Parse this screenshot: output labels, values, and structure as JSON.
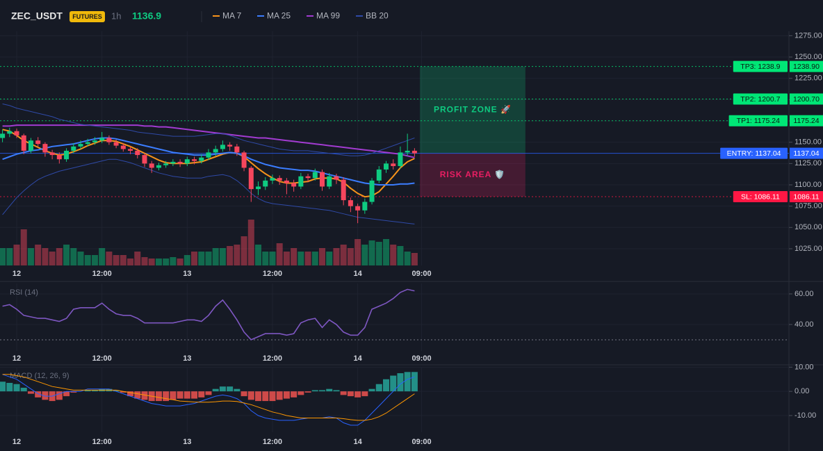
{
  "header": {
    "symbol": "ZEC_USDT",
    "badge": "FUTURES",
    "interval": "1h",
    "price": 1136.9
  },
  "chart_data": [
    {
      "type": "candlestick",
      "xlim": [
        -2.35,
        108.7
      ],
      "ylim": [
        1005.4,
        1280.2
      ],
      "xticks": [
        {
          "value": 0,
          "label": "12"
        },
        {
          "value": 12,
          "label": "12:00"
        },
        {
          "value": 24,
          "label": "13"
        },
        {
          "value": 36,
          "label": "12:00"
        },
        {
          "value": 48,
          "label": "14"
        },
        {
          "value": 57,
          "label": "09:00"
        }
      ],
      "yticks": [
        {
          "value": 1275,
          "label": "1275.00"
        },
        {
          "value": 1250,
          "label": "1250.00"
        },
        {
          "value": 1225,
          "label": "1225.00"
        },
        {
          "value": 1200,
          "label": "1200.00"
        },
        {
          "value": 1175,
          "label": "1175.00"
        },
        {
          "value": 1150,
          "label": "1150.00"
        },
        {
          "value": 1125,
          "label": "1125.00"
        },
        {
          "value": 1100,
          "label": "1100.00"
        },
        {
          "value": 1075,
          "label": "1075.00"
        },
        {
          "value": 1050,
          "label": "1050.00"
        },
        {
          "value": 1025,
          "label": "1025.00"
        }
      ],
      "grid": true,
      "up_color": "#0ecb81",
      "down_color": "#f6465d",
      "x": [
        -2,
        -1,
        0,
        1,
        2,
        3,
        4,
        5,
        6,
        7,
        8,
        9,
        10,
        11,
        12,
        13,
        14,
        15,
        16,
        17,
        18,
        19,
        20,
        21,
        22,
        23,
        24,
        25,
        26,
        27,
        28,
        29,
        30,
        31,
        32,
        33,
        34,
        35,
        36,
        37,
        38,
        39,
        40,
        41,
        42,
        43,
        44,
        45,
        46,
        47,
        48,
        49,
        50,
        51,
        52,
        53,
        54,
        55,
        56
      ],
      "candles": {
        "open": [
          1155,
          1160,
          1163,
          1158,
          1140,
          1152,
          1148,
          1138,
          1135,
          1130,
          1140,
          1145,
          1148,
          1150,
          1152,
          1155,
          1150,
          1146,
          1142,
          1140,
          1135,
          1125,
          1120,
          1123,
          1125,
          1127,
          1125,
          1130,
          1128,
          1132,
          1138,
          1142,
          1147,
          1145,
          1138,
          1120,
          1095,
          1098,
          1105,
          1108,
          1105,
          1102,
          1098,
          1110,
          1108,
          1115,
          1098,
          1110,
          1106,
          1082,
          1075,
          1070,
          1080,
          1105,
          1118,
          1125,
          1122,
          1138,
          1140
        ],
        "high": [
          1165,
          1167,
          1166,
          1160,
          1155,
          1156,
          1150,
          1141,
          1138,
          1143,
          1149,
          1152,
          1154,
          1156,
          1162,
          1158,
          1153,
          1149,
          1145,
          1143,
          1137,
          1128,
          1126,
          1128,
          1130,
          1130,
          1133,
          1133,
          1136,
          1142,
          1146,
          1152,
          1150,
          1148,
          1140,
          1122,
          1104,
          1109,
          1112,
          1111,
          1108,
          1106,
          1114,
          1113,
          1119,
          1118,
          1114,
          1113,
          1109,
          1085,
          1078,
          1084,
          1108,
          1122,
          1128,
          1130,
          1145,
          1160,
          1143
        ],
        "low": [
          1150,
          1156,
          1155,
          1136,
          1137,
          1145,
          1133,
          1130,
          1125,
          1127,
          1137,
          1142,
          1145,
          1147,
          1149,
          1147,
          1143,
          1139,
          1136,
          1131,
          1121,
          1114,
          1117,
          1120,
          1122,
          1121,
          1122,
          1124,
          1125,
          1129,
          1134,
          1139,
          1140,
          1134,
          1116,
          1080,
          1088,
          1094,
          1101,
          1100,
          1089,
          1092,
          1095,
          1103,
          1105,
          1093,
          1095,
          1101,
          1076,
          1068,
          1055,
          1066,
          1077,
          1102,
          1114,
          1118,
          1119,
          1134,
          1133
        ],
        "close": [
          1160,
          1163,
          1158,
          1140,
          1152,
          1148,
          1138,
          1135,
          1130,
          1140,
          1145,
          1148,
          1150,
          1152,
          1155,
          1150,
          1146,
          1142,
          1140,
          1135,
          1125,
          1120,
          1123,
          1125,
          1127,
          1125,
          1130,
          1128,
          1132,
          1138,
          1142,
          1147,
          1145,
          1138,
          1120,
          1095,
          1098,
          1105,
          1108,
          1105,
          1102,
          1098,
          1110,
          1108,
          1115,
          1098,
          1110,
          1106,
          1082,
          1075,
          1070,
          1080,
          1105,
          1118,
          1125,
          1122,
          1138,
          1140,
          1137
        ]
      },
      "volume": [
        25,
        25,
        30,
        52,
        25,
        30,
        25,
        20,
        25,
        30,
        25,
        20,
        15,
        15,
        25,
        20,
        15,
        15,
        10,
        20,
        12,
        10,
        10,
        10,
        12,
        10,
        15,
        20,
        20,
        20,
        25,
        25,
        28,
        30,
        42,
        66,
        30,
        20,
        20,
        32,
        20,
        25,
        20,
        20,
        20,
        25,
        20,
        25,
        30,
        25,
        38,
        30,
        36,
        34,
        38,
        30,
        28,
        20,
        18
      ],
      "series": [
        {
          "name": "MA 7",
          "color": "#f7931a",
          "values": [
            1165,
            1163,
            1158,
            1152,
            1148,
            1144,
            1140,
            1137,
            1135,
            1136,
            1139,
            1142,
            1146,
            1149,
            1152,
            1152,
            1151,
            1148,
            1145,
            1141,
            1137,
            1133,
            1129,
            1126,
            1125,
            1125,
            1125,
            1126,
            1127,
            1130,
            1133,
            1136,
            1138,
            1137,
            1133,
            1126,
            1119,
            1113,
            1108,
            1104,
            1102,
            1102,
            1103,
            1104,
            1107,
            1108,
            1108,
            1107,
            1103,
            1096,
            1090,
            1086,
            1087,
            1092,
            1101,
            1110,
            1120,
            1127,
            1131
          ]
        },
        {
          "name": "MA 25",
          "color": "#3b7dff",
          "values": [
            1130,
            1133,
            1136,
            1138,
            1140,
            1141,
            1143,
            1145,
            1146,
            1147,
            1148,
            1150,
            1152,
            1154,
            1155,
            1155,
            1154,
            1152,
            1150,
            1148,
            1146,
            1144,
            1142,
            1140,
            1138,
            1137,
            1136,
            1135,
            1135,
            1135,
            1136,
            1137,
            1138,
            1137,
            1134,
            1130,
            1127,
            1124,
            1122,
            1120,
            1119,
            1118,
            1117,
            1117,
            1116,
            1114,
            1112,
            1110,
            1108,
            1106,
            1104,
            1102,
            1101,
            1100,
            1100,
            1100,
            1101,
            1101,
            1102
          ]
        },
        {
          "name": "MA 99",
          "color": "#a23bd1",
          "values": [
            1169,
            1169,
            1170,
            1170,
            1170,
            1170,
            1170,
            1170,
            1170,
            1170,
            1170,
            1170,
            1170,
            1170,
            1170,
            1170,
            1170,
            1170,
            1170,
            1170,
            1169,
            1169,
            1168,
            1168,
            1167,
            1166,
            1165,
            1164,
            1163,
            1162,
            1161,
            1160,
            1159,
            1158,
            1157,
            1156,
            1155,
            1155,
            1154,
            1153,
            1152,
            1151,
            1150,
            1149,
            1148,
            1147,
            1146,
            1145,
            1144,
            1143,
            1142,
            1141,
            1140,
            1139,
            1138,
            1137,
            1136,
            1134,
            1132
          ]
        },
        {
          "name": "BB 20",
          "color": "#2f4aa8",
          "upper": [
            1195,
            1193,
            1190,
            1188,
            1186,
            1184,
            1182,
            1180,
            1177,
            1175,
            1173,
            1171,
            1170,
            1169,
            1168,
            1167,
            1166,
            1165,
            1164,
            1162,
            1161,
            1160,
            1159,
            1158,
            1157,
            1157,
            1157,
            1157,
            1158,
            1159,
            1160,
            1160,
            1158,
            1155,
            1152,
            1150,
            1148,
            1146,
            1144,
            1142,
            1141,
            1140,
            1140,
            1140,
            1139,
            1138,
            1137,
            1136,
            1135,
            1134,
            1134,
            1135,
            1137,
            1140,
            1143,
            1146,
            1149,
            1152,
            1155
          ],
          "lower": [
            1065,
            1075,
            1085,
            1093,
            1100,
            1106,
            1110,
            1113,
            1116,
            1118,
            1120,
            1122,
            1124,
            1126,
            1128,
            1130,
            1130,
            1128,
            1126,
            1123,
            1120,
            1117,
            1114,
            1112,
            1110,
            1109,
            1108,
            1108,
            1108,
            1110,
            1111,
            1112,
            1110,
            1105,
            1098,
            1090,
            1084,
            1080,
            1078,
            1077,
            1076,
            1075,
            1074,
            1073,
            1072,
            1071,
            1070,
            1068,
            1066,
            1064,
            1062,
            1061,
            1060,
            1059,
            1058,
            1057,
            1056,
            1055,
            1054
          ]
        }
      ],
      "levels": [
        {
          "label": "TP3: 1238.9",
          "value": 1238.9,
          "axis_label": "1238.90",
          "color": "#00e676",
          "style": "dotted"
        },
        {
          "label": "TP2: 1200.7",
          "value": 1200.7,
          "axis_label": "1200.70",
          "color": "#00e676",
          "style": "dotted"
        },
        {
          "label": "TP1: 1175.24",
          "value": 1175.24,
          "axis_label": "1175.24",
          "color": "#00e676",
          "style": "dotted"
        },
        {
          "label": "ENTRY: 1137.04",
          "value": 1137.04,
          "axis_label": "1137.04",
          "color": "#2962ff",
          "style": "solid"
        },
        {
          "label": "SL: 1086.11",
          "value": 1086.11,
          "axis_label": "1086.11",
          "color": "#ff1744",
          "style": "dotted"
        }
      ],
      "zones": [
        {
          "label": "PROFIT ZONE 🚀",
          "xlim": [
            56.75,
            71.6
          ],
          "ylim": [
            1137.04,
            1238.9
          ],
          "color": "#0ecb81"
        },
        {
          "label": "RISK AREA 🛡️",
          "xlim": [
            56.75,
            71.6
          ],
          "ylim": [
            1086.11,
            1137.04
          ],
          "color": "#e91e63"
        }
      ]
    },
    {
      "type": "line",
      "title": "RSI (14)",
      "ylim": [
        22.7,
        66.8
      ],
      "yticks": [
        {
          "value": 60,
          "label": "60.00"
        },
        {
          "value": 40,
          "label": "40.00"
        }
      ],
      "levels": [
        30
      ],
      "color": "#7e57c2",
      "values": [
        52,
        53,
        50,
        46,
        45,
        44,
        44,
        43,
        42,
        44,
        50,
        51,
        51,
        51,
        54,
        50,
        47,
        46,
        46,
        44,
        41,
        41,
        41,
        41,
        41,
        42,
        43,
        43,
        42,
        46,
        52,
        56,
        50,
        43,
        35,
        30,
        32,
        34,
        34,
        34,
        33,
        34,
        41,
        43,
        44,
        38,
        43,
        40,
        35,
        33,
        33,
        38,
        50,
        52,
        54,
        57,
        61,
        63,
        62
      ]
    },
    {
      "type": "macd",
      "title": "MACD (12, 26, 9)",
      "ylim": [
        -16.9,
        10.1
      ],
      "yticks": [
        {
          "value": 10,
          "label": "10.00"
        },
        {
          "value": 0,
          "label": "0.00"
        },
        {
          "value": -10,
          "label": "-10.00"
        }
      ],
      "series": [
        {
          "name": "MACD",
          "color": "#2962ff",
          "values": [
            7,
            6,
            5,
            3,
            1,
            -1,
            -2,
            -2,
            -1,
            0,
            0,
            0,
            1,
            1,
            1,
            1,
            0,
            -1,
            -2,
            -3,
            -4,
            -5,
            -5.5,
            -6,
            -6,
            -6,
            -5.5,
            -5,
            -4,
            -3,
            -2,
            -1.5,
            -2,
            -3,
            -5,
            -8,
            -10,
            -11,
            -11.5,
            -12,
            -12,
            -12,
            -11.5,
            -11,
            -11,
            -11,
            -10.5,
            -11,
            -13,
            -14,
            -14,
            -12,
            -9,
            -6,
            -3,
            0,
            3,
            5,
            6
          ]
        },
        {
          "name": "Signal",
          "color": "#ff9800",
          "values": [
            7,
            7,
            6.5,
            6,
            5,
            4,
            3,
            2,
            1.5,
            1,
            0.5,
            0.5,
            0.5,
            0.5,
            0.5,
            0.5,
            0.5,
            0,
            -0.5,
            -1,
            -1.5,
            -2,
            -2.5,
            -3,
            -3.5,
            -4,
            -4.2,
            -4.4,
            -4.5,
            -4.5,
            -4.3,
            -4,
            -4,
            -4.2,
            -4.8,
            -5.5,
            -6.5,
            -7.5,
            -8.5,
            -9.2,
            -10,
            -10.5,
            -11,
            -11,
            -11,
            -11,
            -11,
            -11,
            -11.3,
            -11.7,
            -12,
            -12,
            -11.5,
            -10.5,
            -9,
            -7,
            -5,
            -3,
            -1
          ]
        }
      ],
      "histogram": {
        "up_color": "#26a69a",
        "down_color": "#ef5350",
        "values": [
          4,
          3.5,
          3,
          1.5,
          -1,
          -2.5,
          -3.5,
          -4,
          -3.5,
          -2,
          -0.5,
          0,
          0.5,
          0.5,
          1,
          1,
          0.5,
          -0.5,
          -2,
          -3,
          -3.5,
          -4,
          -4,
          -4,
          -3.5,
          -3,
          -3,
          -3,
          -2.5,
          -1.5,
          1,
          2,
          2,
          1,
          -2,
          -3.5,
          -4,
          -4,
          -4,
          -3.5,
          -3,
          -2.5,
          -1.5,
          -0.5,
          0.5,
          0.5,
          1,
          0.5,
          -1.5,
          -2,
          -2.5,
          -2,
          1,
          3,
          5,
          6.5,
          7.5,
          8,
          8
        ]
      }
    }
  ]
}
